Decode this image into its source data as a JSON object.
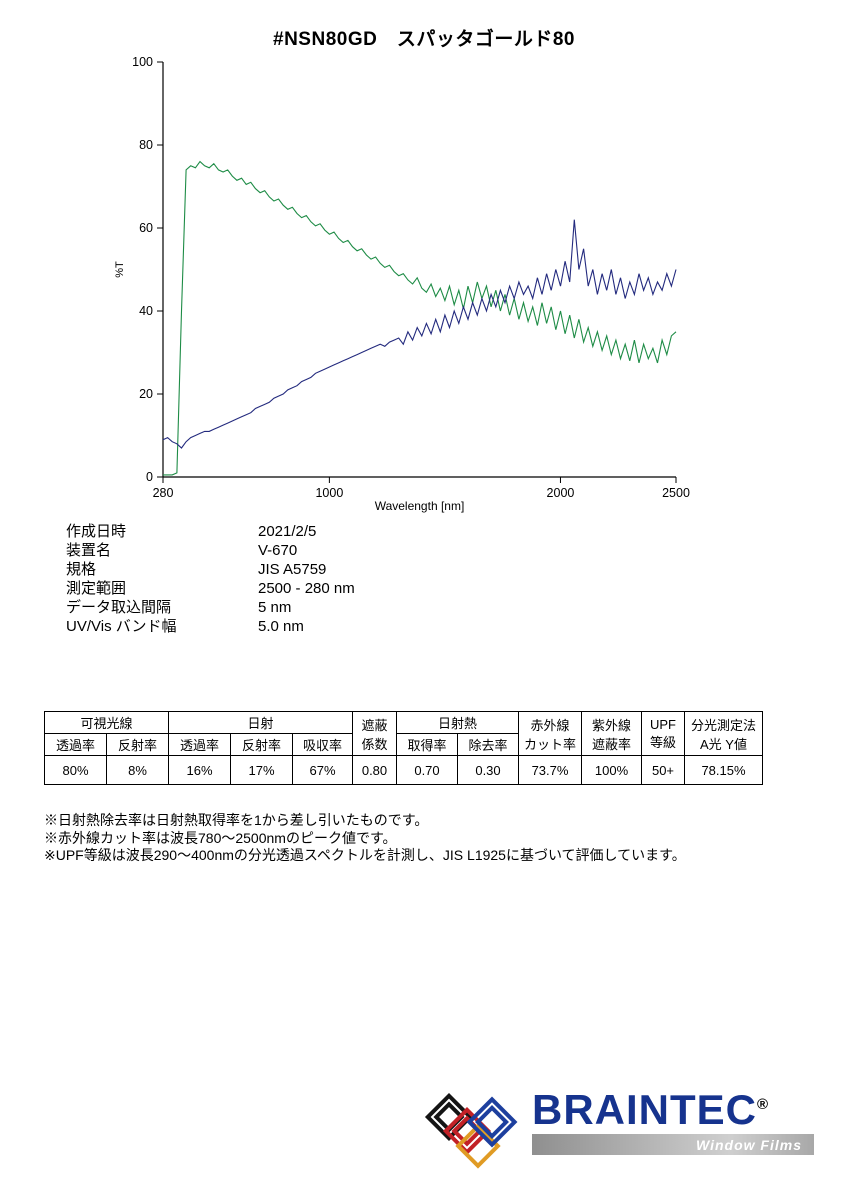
{
  "title": "#NSN80GD　スパッタゴールド80",
  "chart_data": {
    "type": "line",
    "title": "",
    "xlabel": "Wavelength [nm]",
    "ylabel": "%T",
    "xlim": [
      280,
      2500
    ],
    "ylim": [
      0,
      100
    ],
    "x_ticks": [
      280,
      1000,
      2000,
      2500
    ],
    "y_ticks": [
      0,
      20,
      40,
      60,
      80,
      100
    ],
    "grid": false,
    "legend": "none",
    "x": [
      280,
      300,
      320,
      340,
      360,
      380,
      400,
      420,
      440,
      460,
      480,
      500,
      520,
      540,
      560,
      580,
      600,
      620,
      640,
      660,
      680,
      700,
      720,
      740,
      760,
      780,
      800,
      820,
      840,
      860,
      880,
      900,
      920,
      940,
      960,
      980,
      1000,
      1020,
      1040,
      1060,
      1080,
      1100,
      1120,
      1140,
      1160,
      1180,
      1200,
      1220,
      1240,
      1260,
      1280,
      1300,
      1320,
      1340,
      1360,
      1380,
      1400,
      1420,
      1440,
      1460,
      1480,
      1500,
      1520,
      1540,
      1560,
      1580,
      1600,
      1620,
      1640,
      1660,
      1680,
      1700,
      1720,
      1740,
      1760,
      1780,
      1800,
      1820,
      1840,
      1860,
      1880,
      1900,
      1920,
      1940,
      1960,
      1980,
      2000,
      2020,
      2040,
      2060,
      2080,
      2100,
      2120,
      2140,
      2160,
      2180,
      2200,
      2220,
      2240,
      2260,
      2280,
      2300,
      2320,
      2340,
      2360,
      2380,
      2400,
      2420,
      2440,
      2460,
      2480,
      2500
    ],
    "series": [
      {
        "name": "green-curve",
        "color": "#1e8c46",
        "values": [
          0.5,
          0.5,
          0.5,
          1,
          40,
          74,
          75,
          74.5,
          76,
          75,
          74.5,
          75.5,
          74,
          73.5,
          74,
          72.5,
          71.5,
          72,
          70.5,
          71,
          69.5,
          68.5,
          69,
          67.5,
          66.5,
          67,
          65.5,
          64.5,
          65,
          63.5,
          62.5,
          63,
          61.5,
          60.5,
          61,
          59.5,
          58.5,
          59,
          57.5,
          56.5,
          57,
          55.5,
          54.5,
          55,
          53.5,
          52.5,
          53,
          51.5,
          50.5,
          51,
          49.5,
          48.5,
          49,
          47.5,
          46.5,
          48,
          45.5,
          44.5,
          46.5,
          43.5,
          45.5,
          42.5,
          46,
          41.5,
          45,
          40.5,
          46,
          42,
          47,
          43,
          46,
          41,
          45,
          40,
          44,
          39,
          43,
          38,
          42,
          37.5,
          41,
          36.5,
          42,
          37,
          41,
          35.5,
          40,
          34.5,
          39,
          33.5,
          38,
          32.5,
          36,
          31.5,
          35,
          30.5,
          34,
          29.5,
          33,
          28.5,
          32,
          28,
          33,
          27.5,
          32,
          28.5,
          31,
          27.5,
          33,
          29.5,
          34,
          35
        ]
      },
      {
        "name": "navy-curve",
        "color": "#232a7e",
        "values": [
          9,
          9.5,
          8.5,
          8,
          7,
          8.5,
          9.5,
          10,
          10.5,
          11,
          11,
          11.5,
          12,
          12.5,
          13,
          13.5,
          14,
          14.5,
          15,
          15.5,
          16.5,
          17,
          17.5,
          18,
          19,
          19.5,
          20,
          21,
          21.5,
          22,
          23,
          23.5,
          24,
          25,
          25.5,
          26,
          26.5,
          27,
          27.5,
          28,
          28.5,
          29,
          29.5,
          30,
          30.5,
          31,
          31.5,
          32,
          31.5,
          32.5,
          33,
          33.5,
          32,
          35,
          33,
          36,
          34,
          37,
          34.5,
          38,
          35,
          39,
          36,
          40,
          37,
          41,
          38,
          42,
          39,
          43,
          40,
          44,
          41,
          45,
          42,
          46,
          43,
          47,
          44,
          46,
          43,
          48,
          44,
          49,
          45,
          50,
          46,
          52,
          47,
          62,
          50,
          55,
          46,
          50,
          44,
          49,
          45,
          50,
          44,
          48,
          43,
          47,
          44,
          49,
          45,
          48,
          44,
          47,
          45,
          49,
          46,
          50
        ]
      }
    ]
  },
  "metadata": {
    "rows": [
      {
        "label": "作成日時",
        "value": "2021/2/5"
      },
      {
        "label": "装置名",
        "value": "V-670"
      },
      {
        "label": "規格",
        "value": "JIS A5759"
      },
      {
        "label": "測定範囲",
        "value": "2500 - 280 nm"
      },
      {
        "label": "データ取込間隔",
        "value": "5 nm"
      },
      {
        "label": "UV/Vis バンド幅",
        "value": "5.0 nm"
      }
    ]
  },
  "table": {
    "groups": {
      "visible": "可視光線",
      "solar": "日射",
      "solar_heat": "日射熱"
    },
    "merged": {
      "shading": [
        "遮蔽",
        "係数"
      ],
      "ir": [
        "赤外線",
        "カット率"
      ],
      "uv": [
        "紫外線",
        "遮蔽率"
      ],
      "upf": [
        "UPF",
        "等級"
      ],
      "spectro": [
        "分光測定法",
        "A光 Y値"
      ]
    },
    "sub_headers": [
      "透過率",
      "反射率",
      "透過率",
      "反射率",
      "吸収率",
      "取得率",
      "除去率"
    ],
    "values": [
      "80%",
      "8%",
      "16%",
      "17%",
      "67%",
      "0.80",
      "0.70",
      "0.30",
      "73.7%",
      "100%",
      "50+",
      "78.15%"
    ]
  },
  "footnotes": [
    "※日射熱除去率は日射熱取得率を1から差し引いたものです。",
    "※赤外線カット率は波長780〜2500nmのピーク値です。",
    "※UPF等級は波長290〜400nmの分光透過スペクトルを計測し、JIS L1925に基づいて評価しています。"
  ],
  "logo": {
    "brand": "BRAINTEC",
    "registered": "®",
    "tagline": "Window Films"
  }
}
